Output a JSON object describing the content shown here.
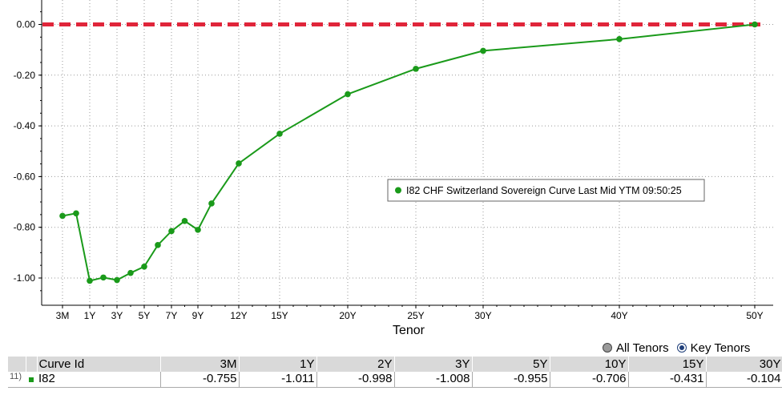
{
  "chart_data": {
    "type": "line",
    "xlabel": "Tenor",
    "ylabel": "",
    "ylim": [
      -1.1,
      0.05
    ],
    "y_ticks": [
      "0.00",
      "-0.20",
      "-0.40",
      "-0.60",
      "-0.80",
      "-1.00"
    ],
    "y_tick_values": [
      0,
      -0.2,
      -0.4,
      -0.6,
      -0.8,
      -1.0
    ],
    "x_ticks": [
      {
        "label": "3M",
        "years": 0.25
      },
      {
        "label": "1Y",
        "years": 1
      },
      {
        "label": "3Y",
        "years": 3
      },
      {
        "label": "5Y",
        "years": 5
      },
      {
        "label": "7Y",
        "years": 7
      },
      {
        "label": "9Y",
        "years": 9
      },
      {
        "label": "12Y",
        "years": 12
      },
      {
        "label": "15Y",
        "years": 15
      },
      {
        "label": "20Y",
        "years": 20
      },
      {
        "label": "25Y",
        "years": 25
      },
      {
        "label": "30Y",
        "years": 30
      },
      {
        "label": "40Y",
        "years": 40
      },
      {
        "label": "50Y",
        "years": 50
      }
    ],
    "series": [
      {
        "name": "I82 CHF Switzerland Sovereign Curve Last Mid YTM 09:50:25",
        "color": "#1a9a1a",
        "points": [
          {
            "x": 0.25,
            "y": -0.755
          },
          {
            "x": 0.5,
            "y": -0.745
          },
          {
            "x": 1,
            "y": -1.011
          },
          {
            "x": 2,
            "y": -0.998
          },
          {
            "x": 3,
            "y": -1.008
          },
          {
            "x": 4,
            "y": -0.98
          },
          {
            "x": 5,
            "y": -0.955
          },
          {
            "x": 6,
            "y": -0.87
          },
          {
            "x": 7,
            "y": -0.815
          },
          {
            "x": 8,
            "y": -0.775
          },
          {
            "x": 9,
            "y": -0.81
          },
          {
            "x": 10,
            "y": -0.706
          },
          {
            "x": 12,
            "y": -0.548
          },
          {
            "x": 15,
            "y": -0.431
          },
          {
            "x": 20,
            "y": -0.275
          },
          {
            "x": 25,
            "y": -0.175
          },
          {
            "x": 30,
            "y": -0.104
          },
          {
            "x": 40,
            "y": -0.058
          },
          {
            "x": 50,
            "y": 0.0
          }
        ]
      }
    ],
    "reference_line": {
      "y": 0.0,
      "color": "#e0253a",
      "style": "dashed"
    },
    "grid": true,
    "legend_placement": "middle-right"
  },
  "options": {
    "all_tenors_label": "All Tenors",
    "key_tenors_label": "Key Tenors",
    "selected": "Key Tenors"
  },
  "table": {
    "header_label": "Curve Id",
    "columns": [
      "3M",
      "1Y",
      "2Y",
      "3Y",
      "5Y",
      "10Y",
      "15Y",
      "30Y"
    ],
    "rows": [
      {
        "index": "11)",
        "id": "I82",
        "values": [
          "-0.755",
          "-1.011",
          "-0.998",
          "-1.008",
          "-0.955",
          "-0.706",
          "-0.431",
          "-0.104"
        ]
      }
    ]
  }
}
